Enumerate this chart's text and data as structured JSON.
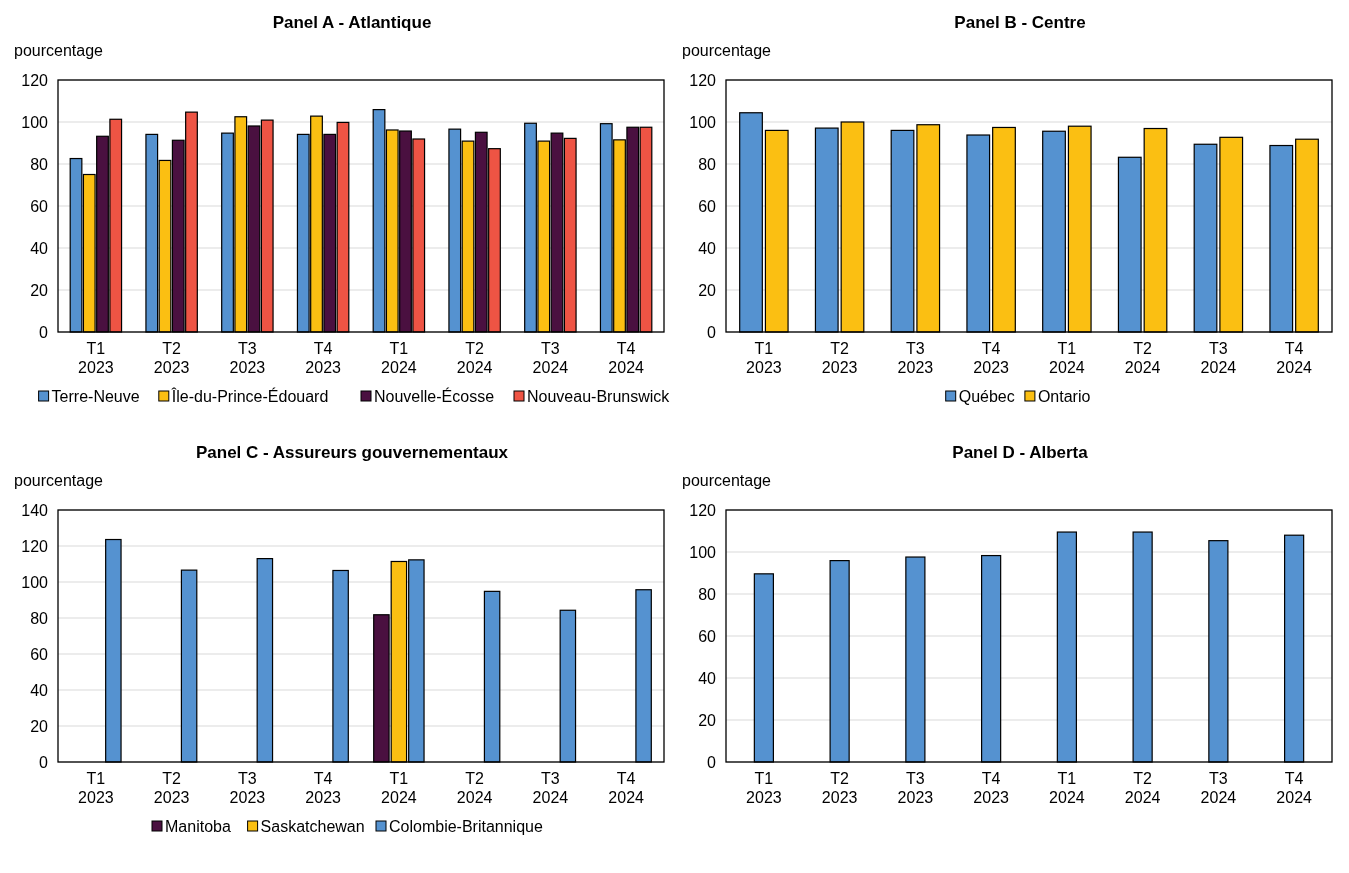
{
  "chart_data": [
    {
      "type": "bar",
      "title": "Panel A - Atlantique",
      "ylabel": "pourcentage",
      "categories": [
        "T1 2023",
        "T2 2023",
        "T3 2023",
        "T4 2023",
        "T1 2024",
        "T2 2024",
        "T3 2024",
        "T4 2024"
      ],
      "ylim": [
        0,
        120
      ],
      "yticks": [
        0,
        20,
        40,
        60,
        80,
        100,
        120
      ],
      "grid": "y",
      "legend": "bottom",
      "series": [
        {
          "name": "Terre-Neuve",
          "color": "#5592d0",
          "values": [
            82.6,
            94.1,
            94.7,
            94.1,
            105.9,
            96.6,
            99.4,
            99.2
          ]
        },
        {
          "name": "Île-du-Prince-Édouard",
          "color": "#fbbf12",
          "values": [
            75.0,
            81.7,
            102.5,
            102.8,
            96.2,
            90.9,
            90.9,
            91.5
          ]
        },
        {
          "name": "Nouvelle-Écosse",
          "color": "#4a1040",
          "values": [
            93.2,
            91.3,
            98.1,
            94.1,
            95.7,
            95.1,
            94.7,
            97.5
          ]
        },
        {
          "name": "Nouveau-Brunswick",
          "color": "#ee5444",
          "values": [
            101.3,
            104.7,
            100.9,
            99.8,
            91.9,
            87.3,
            92.2,
            97.5
          ]
        }
      ]
    },
    {
      "type": "bar",
      "title": "Panel B - Centre",
      "ylabel": "pourcentage",
      "categories": [
        "T1 2023",
        "T2 2023",
        "T3 2023",
        "T4 2023",
        "T1 2024",
        "T2 2024",
        "T3 2024",
        "T4 2024"
      ],
      "ylim": [
        0,
        120
      ],
      "yticks": [
        0,
        20,
        40,
        60,
        80,
        100,
        120
      ],
      "grid": "y",
      "legend": "bottom",
      "series": [
        {
          "name": "Québec",
          "color": "#5592d0",
          "values": [
            104.4,
            97.1,
            96.0,
            93.8,
            95.6,
            83.2,
            89.4,
            88.8
          ]
        },
        {
          "name": "Ontario",
          "color": "#fbbf12",
          "values": [
            96.0,
            100.0,
            98.7,
            97.4,
            98.0,
            96.9,
            92.7,
            91.8
          ]
        }
      ]
    },
    {
      "type": "bar",
      "title": "Panel C - Assureurs gouvernementaux",
      "ylabel": "pourcentage",
      "categories": [
        "T1 2023",
        "T2 2023",
        "T3 2023",
        "T4 2023",
        "T1 2024",
        "T2 2024",
        "T3 2024",
        "T4 2024"
      ],
      "ylim": [
        0,
        140
      ],
      "yticks": [
        0,
        20,
        40,
        60,
        80,
        100,
        120,
        140
      ],
      "grid": "y",
      "legend": "bottom",
      "series": [
        {
          "name": "Manitoba",
          "color": "#4a1040",
          "values": [
            null,
            null,
            null,
            null,
            81.8,
            null,
            null,
            null
          ]
        },
        {
          "name": "Saskatchewan",
          "color": "#fbbf12",
          "values": [
            null,
            null,
            null,
            null,
            111.4,
            null,
            null,
            null
          ]
        },
        {
          "name": "Colombie-Britannique",
          "color": "#5592d0",
          "values": [
            123.6,
            106.6,
            113.0,
            106.4,
            112.3,
            94.8,
            84.3,
            95.7
          ]
        }
      ]
    },
    {
      "type": "bar",
      "title": "Panel D - Alberta",
      "ylabel": "pourcentage",
      "categories": [
        "T1 2023",
        "T2 2023",
        "T3 2023",
        "T4 2023",
        "T1 2024",
        "T2 2024",
        "T3 2024",
        "T4 2024"
      ],
      "ylim": [
        0,
        120
      ],
      "yticks": [
        0,
        20,
        40,
        60,
        80,
        100,
        120
      ],
      "grid": "y",
      "series": [
        {
          "color": "#5592d0",
          "values": [
            89.6,
            95.9,
            97.6,
            98.3,
            109.5,
            109.5,
            105.4,
            108.0
          ]
        }
      ]
    }
  ]
}
